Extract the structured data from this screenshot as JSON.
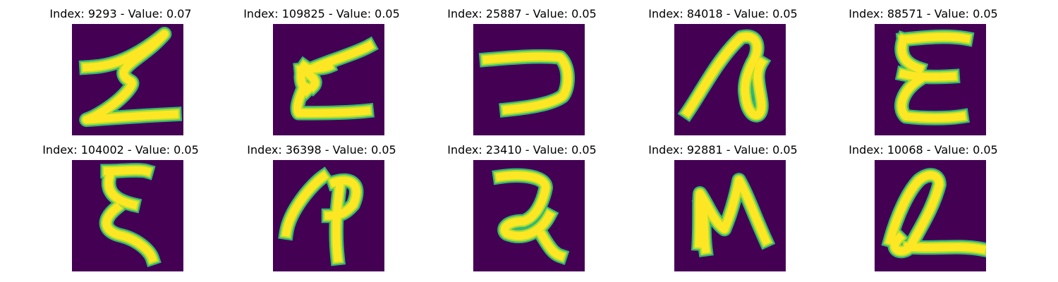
{
  "colors": {
    "background": "#440154",
    "stroke_edge": "#35b779",
    "stroke_mid": "#b5de2b",
    "stroke_core": "#fde725",
    "title_text": "#000000"
  },
  "panels": [
    {
      "title": "Index: 9293 - Value: 0.07",
      "glyph": "Z"
    },
    {
      "title": "Index: 109825 - Value: 0.05",
      "glyph": "E"
    },
    {
      "title": "Index: 25887 - Value: 0.05",
      "glyph": "reversed-C"
    },
    {
      "title": "Index: 84018 - Value: 0.05",
      "glyph": "a"
    },
    {
      "title": "Index: 88571 - Value: 0.05",
      "glyph": "E"
    },
    {
      "title": "Index: 104002 - Value: 0.05",
      "glyph": "E"
    },
    {
      "title": "Index: 36398 - Value: 0.05",
      "glyph": "P"
    },
    {
      "title": "Index: 23410 - Value: 0.05",
      "glyph": "2"
    },
    {
      "title": "Index: 92881 - Value: 0.05",
      "glyph": "N"
    },
    {
      "title": "Index: 10068 - Value: 0.05",
      "glyph": "Q"
    }
  ]
}
